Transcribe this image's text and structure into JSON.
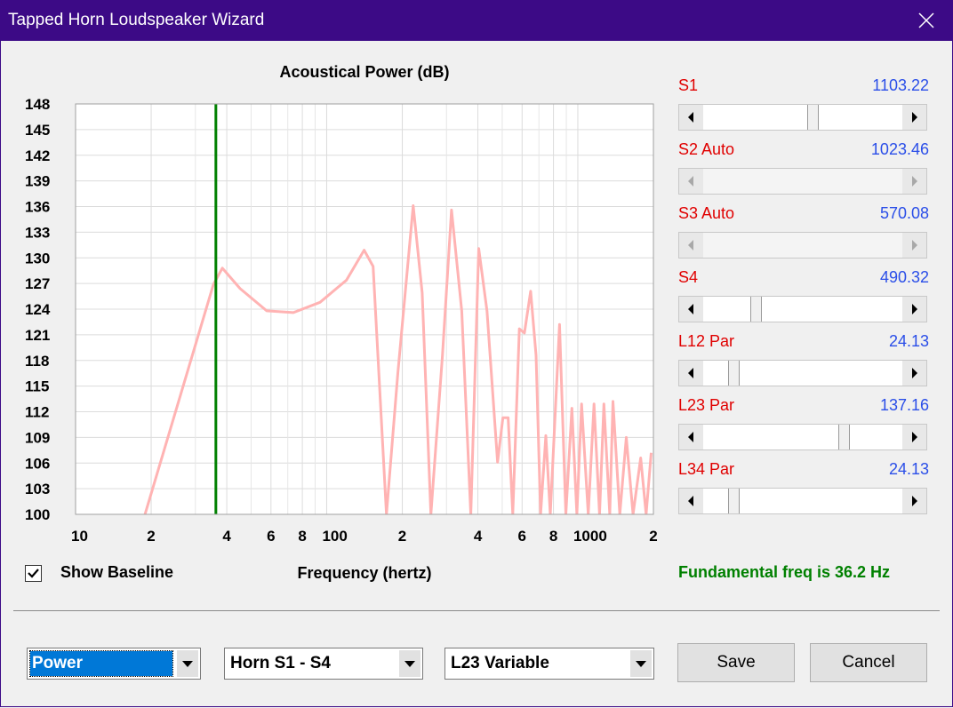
{
  "window": {
    "title": "Tapped Horn Loudspeaker Wizard"
  },
  "chart_data": {
    "type": "line",
    "title": "Acoustical Power (dB)",
    "x_label": "Frequency (hertz)",
    "x_scale": "log",
    "xlim": [
      10,
      2000
    ],
    "ylim": [
      100,
      148
    ],
    "xticks": [
      10,
      {
        "value": 20,
        "label": "2"
      },
      {
        "value": 40,
        "label": "4"
      },
      {
        "value": 60,
        "label": "6"
      },
      {
        "value": 80,
        "label": "8"
      },
      100,
      {
        "value": 200,
        "label": "2"
      },
      {
        "value": 400,
        "label": "4"
      },
      {
        "value": 600,
        "label": "6"
      },
      {
        "value": 800,
        "label": "8"
      },
      1000,
      {
        "value": 2000,
        "label": "2"
      }
    ],
    "minor_xticks": [
      30,
      50,
      70,
      90,
      300,
      500,
      700,
      900
    ],
    "yticks": [
      100,
      103,
      106,
      109,
      112,
      115,
      118,
      121,
      124,
      127,
      130,
      133,
      136,
      139,
      142,
      145,
      148
    ],
    "grid": true,
    "marker_x": 36.2,
    "marker_color": "#008000",
    "series": [
      {
        "color": "#ffb3b3",
        "x": [
          18.9,
          35.4,
          38.4,
          45.2,
          57.7,
          73.7,
          94.1,
          120,
          141,
          153,
          173,
          192,
          221,
          240,
          260,
          289,
          314,
          345,
          375,
          403,
          435,
          479,
          503,
          528,
          551,
          585,
          613,
          649,
          682,
          711,
          746,
          777,
          846,
          896,
          947,
          991,
          1035,
          1100,
          1160,
          1220,
          1270,
          1340,
          1380,
          1470,
          1560,
          1660,
          1780,
          1870,
          1960
        ],
        "values": [
          100,
          126.9,
          128.8,
          126.4,
          123.8,
          123.6,
          124.8,
          127.4,
          130.9,
          129,
          100,
          116.5,
          136.1,
          125.9,
          100,
          118.6,
          135.6,
          123.8,
          100,
          131.1,
          123.8,
          106.1,
          111.3,
          111.3,
          100,
          121.7,
          121.2,
          126.1,
          118.6,
          100,
          109.2,
          100,
          122.2,
          100,
          112.4,
          100,
          112.9,
          100,
          112.9,
          100,
          112.9,
          100,
          113.2,
          100,
          109,
          100,
          106.6,
          100,
          107.2
        ]
      }
    ]
  },
  "sliders": [
    {
      "label": "S1",
      "value": 1103.22,
      "enabled": true
    },
    {
      "label": "S2 Auto",
      "value": 1023.46,
      "enabled": false
    },
    {
      "label": "S3 Auto",
      "value": 570.08,
      "enabled": false
    },
    {
      "label": "S4",
      "value": 490.32,
      "enabled": true
    },
    {
      "label": "L12 Par",
      "value": 24.13,
      "enabled": true
    },
    {
      "label": "L23 Par",
      "value": 137.16,
      "enabled": true
    },
    {
      "label": "L34 Par",
      "value": 24.13,
      "enabled": true
    }
  ],
  "show_baseline": {
    "label": "Show Baseline",
    "checked": true
  },
  "status": "Fundamental freq is 36.2 Hz",
  "dropdowns": [
    "Power",
    "Horn S1 - S4",
    "L23 Variable"
  ],
  "buttons": [
    "Save",
    "Cancel"
  ]
}
